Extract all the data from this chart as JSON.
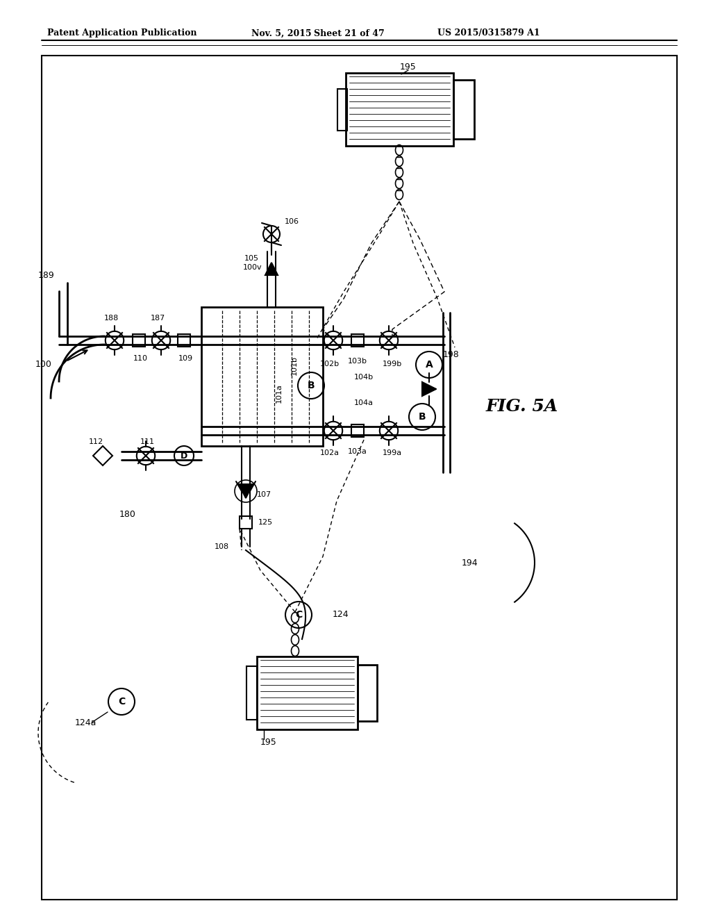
{
  "header_left": "Patent Application Publication",
  "header_date": "Nov. 5, 2015",
  "header_sheet": "Sheet 21 of 47",
  "header_num": "US 2015/0315879 A1",
  "fig_label": "FIG. 5A",
  "bg": "#ffffff"
}
